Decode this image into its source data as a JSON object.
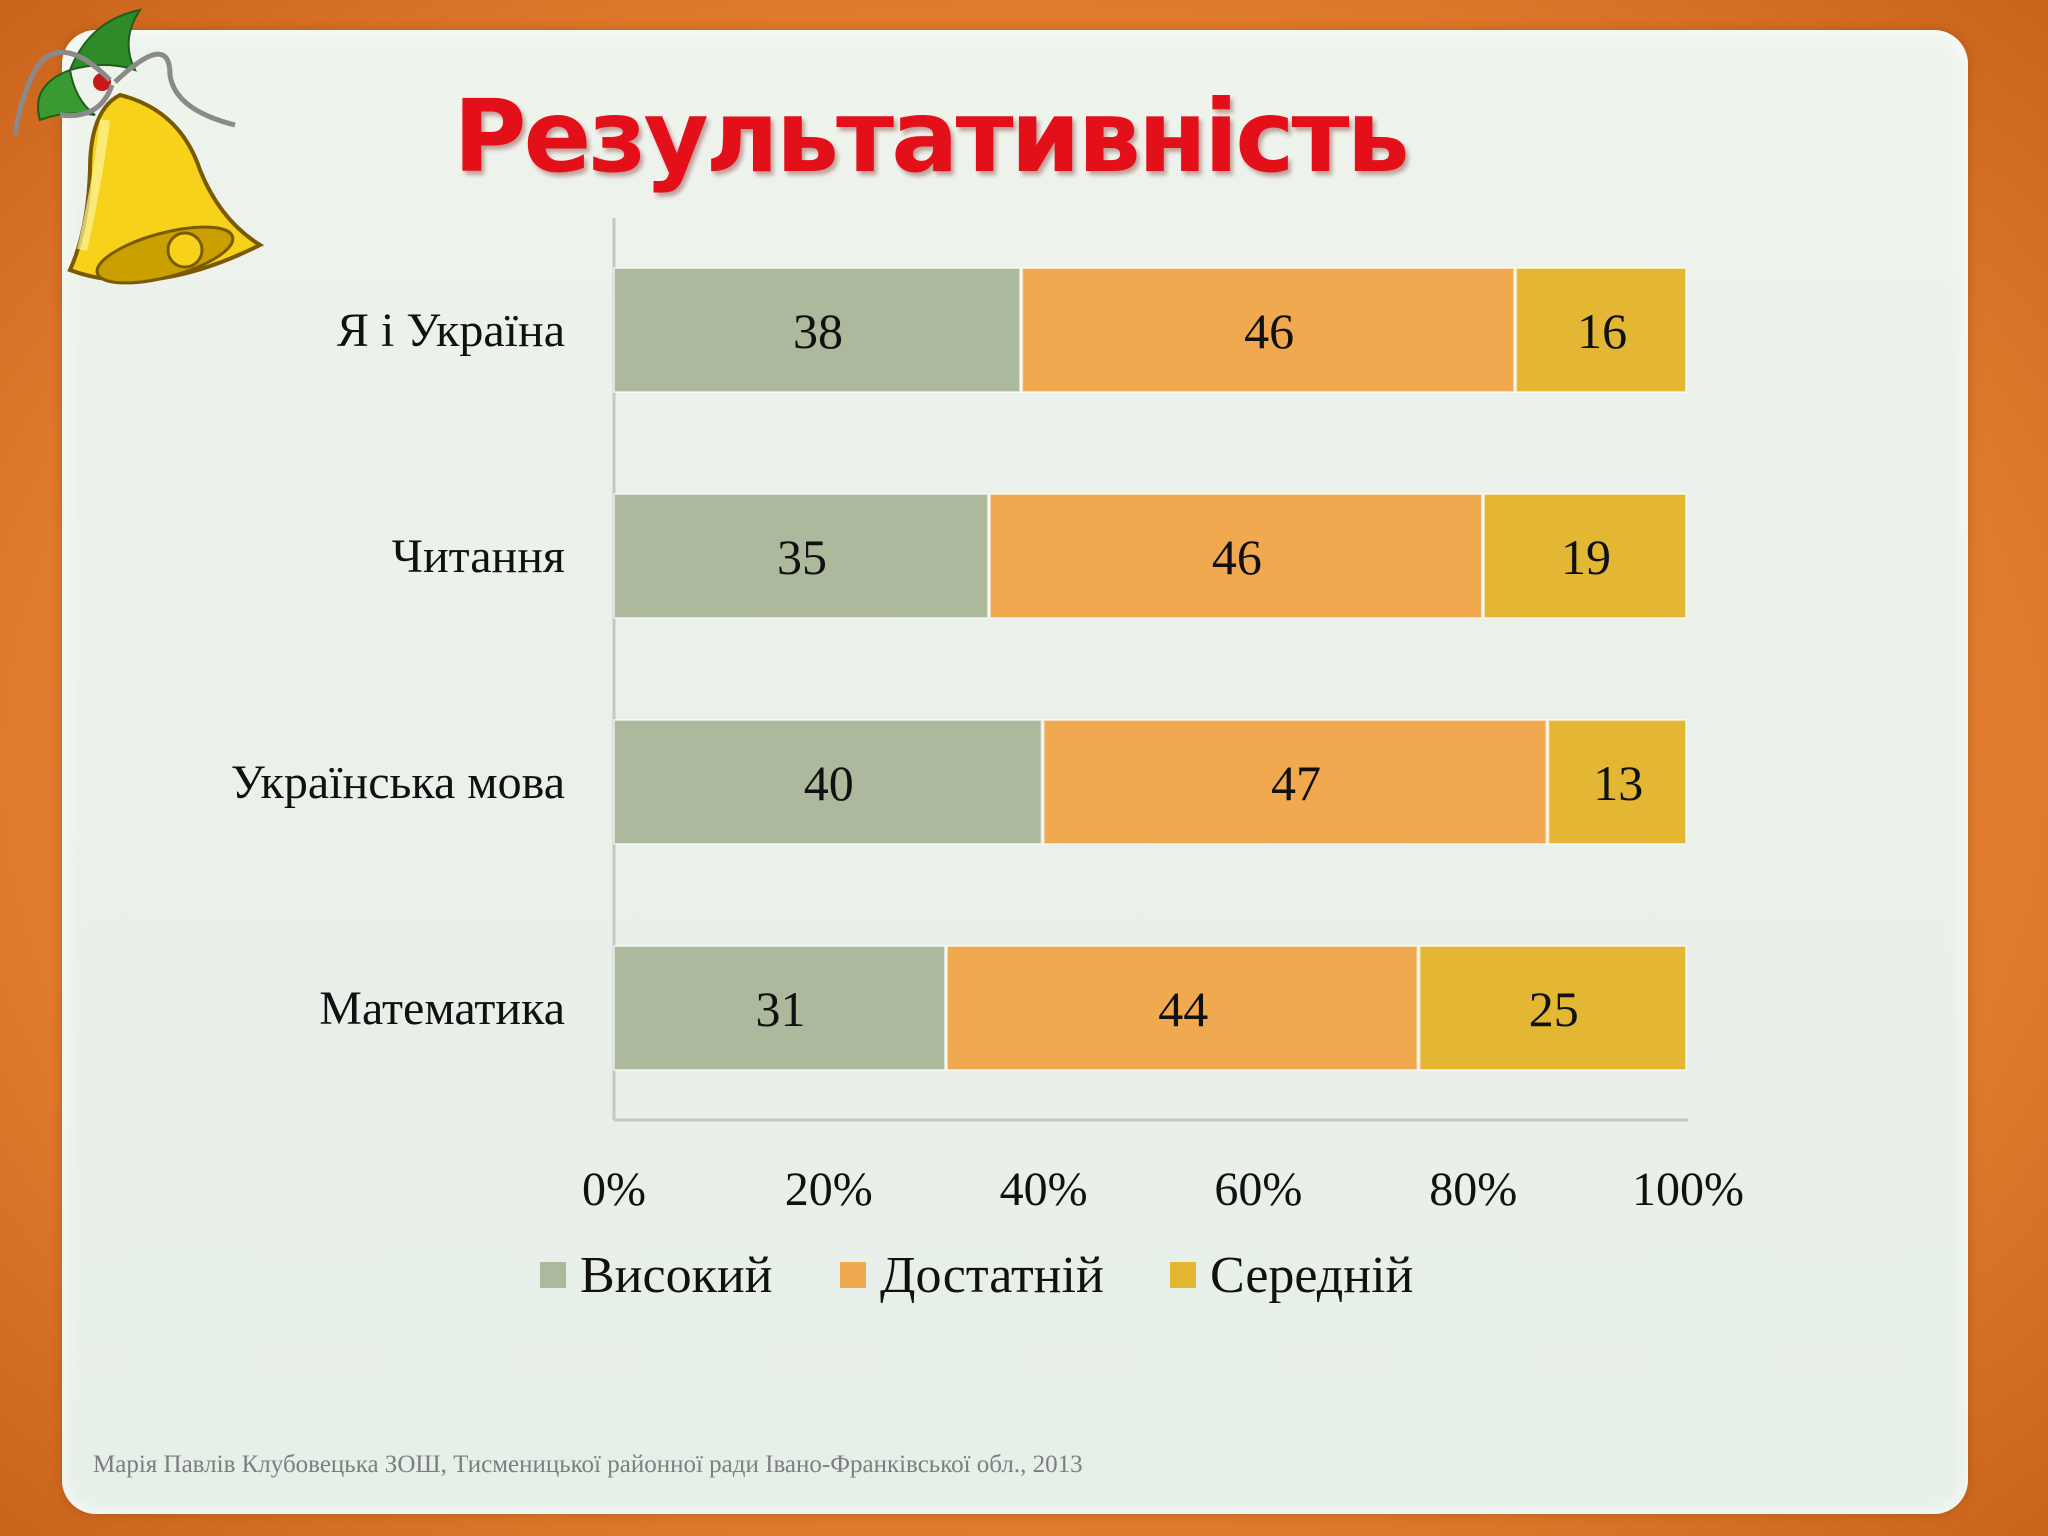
{
  "slide": {
    "title": "Результативність",
    "footer": "Марія Павлів Клубовецька ЗОШ, Тисменицької районної ради Івано-Франківської обл., 2013",
    "bell_icon": "bell-icon"
  },
  "colors": {
    "background": "#e8832f",
    "panel": "#eaf1ea",
    "title": "#e3101a",
    "Високий": "#adb99c",
    "Достатній": "#f1a94f",
    "Середній": "#e3b733"
  },
  "chart_data": {
    "type": "bar",
    "orientation": "horizontal",
    "stacked": "percent",
    "title": "",
    "xlabel": "",
    "ylabel": "",
    "categories": [
      "Я і Україна",
      "Читання",
      "Українська мова",
      "Математика"
    ],
    "series": [
      {
        "name": "Високий",
        "color": "#adb99c",
        "values": [
          38,
          35,
          40,
          31
        ]
      },
      {
        "name": "Достатній",
        "color": "#f1a94f",
        "values": [
          46,
          46,
          47,
          44
        ]
      },
      {
        "name": "Середній",
        "color": "#e3b733",
        "values": [
          16,
          19,
          13,
          25
        ]
      }
    ],
    "xlim": [
      0,
      100
    ],
    "ticks": [
      "0%",
      "20%",
      "40%",
      "60%",
      "80%",
      "100%"
    ],
    "tick_values": [
      0,
      20,
      40,
      60,
      80,
      100
    ],
    "grid": false,
    "legend": "bottom"
  }
}
